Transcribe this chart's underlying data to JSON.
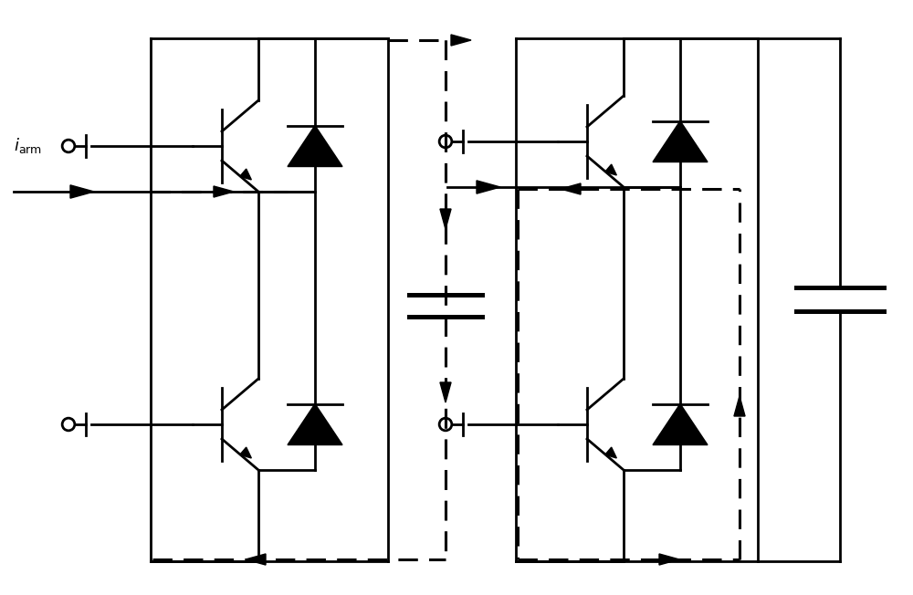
{
  "figsize": [
    10.0,
    6.52
  ],
  "dpi": 100,
  "bg_color": "#ffffff",
  "lw": 2.0,
  "lwd": 2.2
}
